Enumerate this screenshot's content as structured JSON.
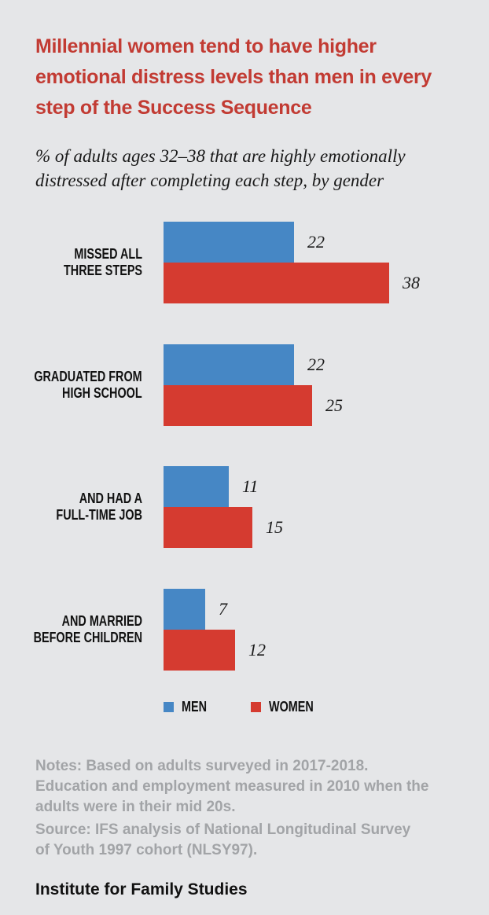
{
  "page": {
    "background": "#E5E6E8"
  },
  "chart_data": {
    "type": "bar",
    "orientation": "horizontal",
    "title": "Millennial women tend to have higher\nemotional distress levels than men in every\nstep of the Success Sequence",
    "subtitle": "% of adults ages 32–38 that are highly emotionally\ndistressed after completing each step, by gender",
    "categories": [
      "MISSED ALL\nTHREE STEPS",
      "GRADUATED FROM\nHIGH SCHOOL",
      "AND HAD A\nFULL-TIME JOB",
      "AND MARRIED\nBEFORE CHILDREN"
    ],
    "series": [
      {
        "name": "MEN",
        "color": "#4687C5",
        "values": [
          22,
          22,
          11,
          7
        ]
      },
      {
        "name": "WOMEN",
        "color": "#D53B30",
        "values": [
          38,
          25,
          15,
          12
        ]
      }
    ],
    "xlim": [
      0,
      40
    ],
    "grid": false,
    "value_labels": true,
    "legend_position": "bottom",
    "title_color": "#C23B33"
  },
  "notes": "Notes: Based on adults surveyed in 2017-2018. Education and employment measured in 2010 when the adults were in their mid 20s.",
  "source": "Source: IFS analysis of National Longitudinal Survey of Youth 1997 cohort (NLSY97).",
  "footer": "Institute for Family Studies"
}
